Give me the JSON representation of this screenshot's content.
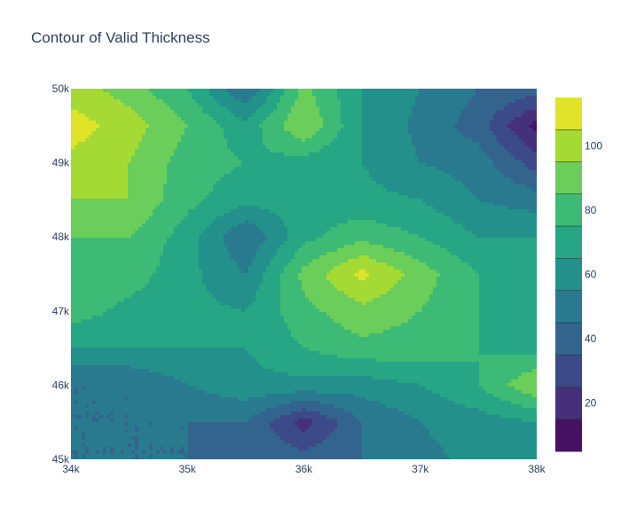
{
  "chart_data": {
    "type": "contour",
    "title": "Contour of Valid Thickness",
    "xlabel": "",
    "ylabel": "",
    "x_ticks": [
      {
        "value": 34000,
        "label": "34k"
      },
      {
        "value": 35000,
        "label": "35k"
      },
      {
        "value": 36000,
        "label": "36k"
      },
      {
        "value": 37000,
        "label": "37k"
      },
      {
        "value": 38000,
        "label": "38k"
      }
    ],
    "y_ticks": [
      {
        "value": 45000,
        "label": "45k"
      },
      {
        "value": 46000,
        "label": "46k"
      },
      {
        "value": 47000,
        "label": "47k"
      },
      {
        "value": 48000,
        "label": "48k"
      },
      {
        "value": 49000,
        "label": "49k"
      },
      {
        "value": 50000,
        "label": "50k"
      }
    ],
    "xlim": [
      34000,
      38000
    ],
    "ylim": [
      45000,
      50000
    ],
    "colorbar": {
      "colorscale": "Viridis",
      "range": [
        5,
        115
      ],
      "contour_step": 10,
      "ticks": [
        {
          "value": 20,
          "label": "20"
        },
        {
          "value": 40,
          "label": "40"
        },
        {
          "value": 60,
          "label": "60"
        },
        {
          "value": 80,
          "label": "80"
        },
        {
          "value": 100,
          "label": "100"
        }
      ]
    },
    "x": [
      34000,
      34500,
      35000,
      35500,
      36000,
      36500,
      37000,
      37500,
      38000
    ],
    "y": [
      45000,
      45500,
      46000,
      46500,
      47000,
      47500,
      48000,
      48500,
      49000,
      49500,
      50000
    ],
    "z": [
      [
        45,
        45,
        45,
        42,
        40,
        45,
        52,
        58,
        60
      ],
      [
        45,
        45,
        45,
        45,
        20,
        45,
        55,
        60,
        65
      ],
      [
        45,
        45,
        55,
        62,
        62,
        60,
        65,
        75,
        95
      ],
      [
        65,
        65,
        65,
        65,
        75,
        82,
        80,
        75,
        72
      ],
      [
        80,
        72,
        68,
        65,
        82,
        92,
        85,
        75,
        70
      ],
      [
        82,
        80,
        68,
        55,
        88,
        108,
        90,
        75,
        70
      ],
      [
        85,
        85,
        70,
        45,
        72,
        82,
        75,
        65,
        65
      ],
      [
        95,
        95,
        78,
        68,
        70,
        68,
        65,
        55,
        50
      ],
      [
        102,
        95,
        80,
        75,
        70,
        65,
        55,
        50,
        30
      ],
      [
        110,
        100,
        85,
        68,
        95,
        65,
        52,
        40,
        10
      ],
      [
        100,
        90,
        75,
        45,
        88,
        65,
        55,
        45,
        40
      ]
    ]
  }
}
